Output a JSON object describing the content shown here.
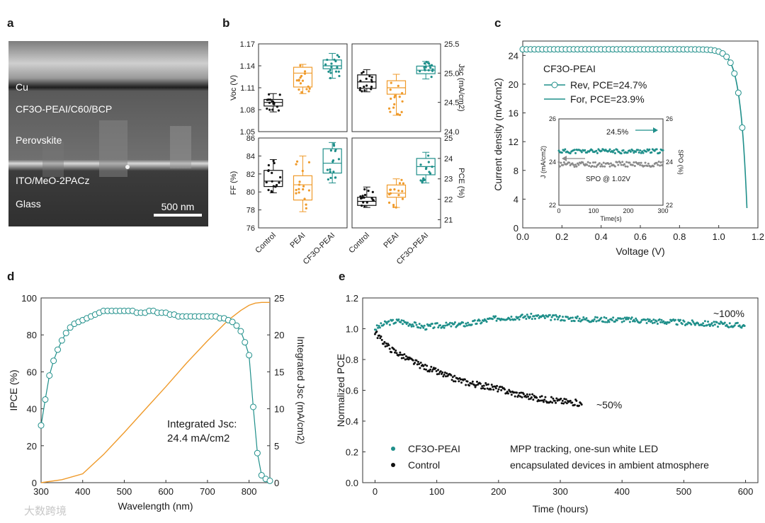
{
  "colors": {
    "teal": "#1f8f8a",
    "orange": "#ef9a2a",
    "black": "#111111",
    "gray": "#8a8a8a"
  },
  "panels": {
    "a": {
      "label": "a",
      "layers": [
        "Cu",
        "CF3O-PEAI/C60/BCP",
        "Perovskite",
        "ITO/MeO-2PACz",
        "Glass"
      ],
      "scalebar": "500 nm"
    },
    "b": {
      "label": "b",
      "categories": [
        "Control",
        "PEAI",
        "CF3O-PEAI"
      ],
      "voc": {
        "ylabel": "Voc (V)",
        "ylim": [
          1.05,
          1.17
        ],
        "ticks": [
          "1.05",
          "1.08",
          "1.11",
          "1.14",
          "1.17"
        ],
        "medians": [
          1.09,
          1.13,
          1.14
        ],
        "q1": [
          1.085,
          1.111,
          1.136
        ],
        "q3": [
          1.094,
          1.138,
          1.148
        ],
        "min": [
          1.077,
          1.102,
          1.123
        ],
        "max": [
          1.102,
          1.142,
          1.157
        ]
      },
      "jsc": {
        "ylabel": "Jsc (mA/cm2)",
        "ylim": [
          24.0,
          25.5
        ],
        "ticks": [
          "24.0",
          "24.5",
          "25.0",
          "25.5"
        ],
        "medians": [
          24.85,
          24.75,
          25.05
        ],
        "q1": [
          24.74,
          24.64,
          24.99
        ],
        "q3": [
          24.97,
          24.87,
          25.12
        ],
        "min": [
          24.68,
          24.28,
          24.9
        ],
        "max": [
          25.06,
          24.98,
          25.2
        ]
      },
      "ff": {
        "ylabel": "FF (%)",
        "ylim": [
          76,
          86
        ],
        "ticks": [
          "76",
          "78",
          "80",
          "82",
          "84",
          "86"
        ],
        "medians": [
          81.2,
          80.8,
          83.2
        ],
        "q1": [
          80.6,
          79.1,
          82.1
        ],
        "q3": [
          82.4,
          81.8,
          84.8
        ],
        "min": [
          79.9,
          77.8,
          81.0
        ],
        "max": [
          83.6,
          84.0,
          85.5
        ]
      },
      "pce": {
        "ylabel": "PCE (%)",
        "ylim": [
          20.6,
          25.0
        ],
        "ticks": [
          "21",
          "22",
          "23",
          "24",
          "25"
        ],
        "medians": [
          21.9,
          22.3,
          23.6
        ],
        "q1": [
          21.7,
          22.1,
          23.2
        ],
        "q3": [
          22.1,
          22.7,
          24.0
        ],
        "min": [
          21.6,
          21.6,
          22.8
        ],
        "max": [
          22.6,
          23.0,
          24.3
        ]
      }
    },
    "c": {
      "label": "c",
      "xlabel": "Voltage (V)",
      "ylabel": "Current density (mA/cm2)",
      "xlim": [
        0,
        1.2
      ],
      "ylim": [
        0,
        26
      ],
      "xticks": [
        "0.0",
        "0.2",
        "0.4",
        "0.6",
        "0.8",
        "1.0",
        "1.2"
      ],
      "yticks": [
        "0",
        "4",
        "8",
        "12",
        "16",
        "20",
        "24"
      ],
      "legend_title": "CF3O-PEAI",
      "legend": [
        "Rev, PCE=24.7%",
        "For, PCE=23.9%"
      ],
      "inset": {
        "xlabel": "Time(s)",
        "ylabel_left": "J (mA/cm2)",
        "ylabel_right": "SPO (%)",
        "xlim": [
          0,
          300
        ],
        "ylim_left": [
          22,
          26
        ],
        "ylim_right": [
          22,
          26
        ],
        "xticks": [
          "0",
          "100",
          "200",
          "300"
        ],
        "yticks_left": [
          "22",
          "24",
          "26"
        ],
        "yticks_right": [
          "22",
          "24",
          "26"
        ],
        "annotation_value": "24.5%",
        "annotation_condition": "SPO @ 1.02V",
        "spo_level": 24.5,
        "j_level": 23.9
      }
    },
    "d": {
      "label": "d",
      "xlabel": "Wavelength (nm)",
      "ylabel_left": "IPCE (%)",
      "ylabel_right": "Integrated Jsc (mA/cm2)",
      "xlim": [
        300,
        850
      ],
      "ylim_left": [
        0,
        100
      ],
      "ylim_right": [
        0,
        25
      ],
      "xticks": [
        "300",
        "400",
        "500",
        "600",
        "700",
        "800"
      ],
      "yticks_left": [
        "0",
        "20",
        "40",
        "60",
        "80",
        "100"
      ],
      "yticks_right": [
        "0",
        "5",
        "10",
        "15",
        "20",
        "25"
      ],
      "annotation_line1": "Integrated Jsc:",
      "annotation_line2": "24.4 mA/cm2",
      "ipce": {
        "x": [
          300,
          310,
          320,
          330,
          340,
          350,
          360,
          370,
          380,
          390,
          400,
          410,
          420,
          430,
          440,
          450,
          460,
          470,
          480,
          490,
          500,
          510,
          520,
          530,
          540,
          550,
          560,
          570,
          580,
          590,
          600,
          610,
          620,
          630,
          640,
          650,
          660,
          670,
          680,
          690,
          700,
          710,
          720,
          730,
          740,
          750,
          760,
          770,
          780,
          790,
          800,
          810,
          820,
          830,
          840,
          850
        ],
        "y": [
          31,
          45,
          58,
          66,
          72,
          77,
          81,
          84,
          86,
          87,
          88,
          89,
          90,
          91,
          92,
          93,
          93,
          93,
          93,
          93,
          93,
          93,
          93,
          92,
          92,
          92,
          93,
          93,
          92,
          92,
          92,
          91,
          91,
          90,
          90,
          90,
          90,
          90,
          90,
          90,
          90,
          90,
          90,
          89,
          89,
          88,
          87,
          85,
          82,
          76,
          69,
          41,
          16,
          4,
          2,
          1
        ]
      },
      "integrated_jsc": {
        "x": [
          300,
          350,
          400,
          450,
          500,
          550,
          600,
          650,
          700,
          750,
          780,
          800,
          815,
          830,
          850
        ],
        "y": [
          0,
          0.4,
          1.2,
          3.8,
          6.8,
          9.9,
          13.0,
          16.2,
          19.2,
          22.0,
          23.3,
          24.0,
          24.3,
          24.4,
          24.4
        ]
      }
    },
    "e": {
      "label": "e",
      "xlabel": "Time (hours)",
      "ylabel": "Normalized PCE",
      "xlim": [
        -20,
        620
      ],
      "ylim": [
        0,
        1.2
      ],
      "xticks": [
        "0",
        "100",
        "200",
        "300",
        "400",
        "500",
        "600"
      ],
      "yticks": [
        "0.0",
        "0.2",
        "0.4",
        "0.6",
        "0.8",
        "1.0",
        "1.2"
      ],
      "annotation_teal": "~100%",
      "annotation_black": "~50%",
      "legend": [
        "CF3O-PEAI",
        "Control"
      ],
      "condition_line1": "MPP tracking, one-sun white LED",
      "condition_line2": "encapsulated devices in ambient atmosphere",
      "cf3o_peai": {
        "x": [
          0,
          20,
          40,
          60,
          80,
          100,
          150,
          200,
          250,
          300,
          350,
          400,
          450,
          500,
          550,
          600
        ],
        "y": [
          1.0,
          1.04,
          1.05,
          1.03,
          1.01,
          1.02,
          1.03,
          1.07,
          1.08,
          1.07,
          1.06,
          1.06,
          1.05,
          1.04,
          1.03,
          1.02
        ]
      },
      "control": {
        "x": [
          0,
          10,
          25,
          50,
          75,
          100,
          125,
          150,
          175,
          200,
          225,
          250,
          275,
          300,
          325,
          335
        ],
        "y": [
          0.98,
          0.93,
          0.87,
          0.81,
          0.76,
          0.72,
          0.68,
          0.65,
          0.63,
          0.61,
          0.58,
          0.56,
          0.54,
          0.53,
          0.52,
          0.51
        ]
      }
    }
  },
  "watermark": "大数跨境"
}
